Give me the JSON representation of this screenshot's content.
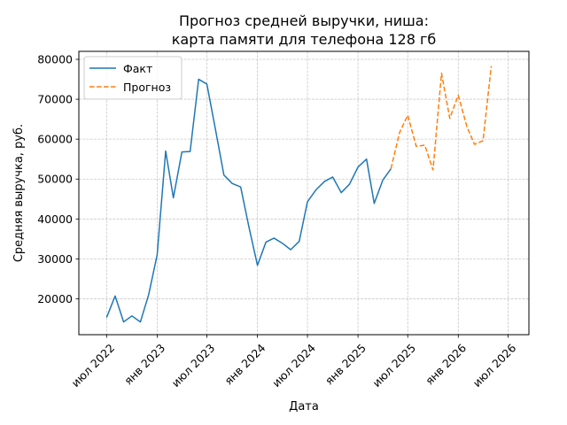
{
  "chart_data": {
    "type": "line",
    "title": [
      "Прогноз средней выручки, ниша:",
      "карта памяти для телефона 128 гб"
    ],
    "xlabel": "Дата",
    "ylabel": "Средняя выручка, руб.",
    "xlim": [
      "2022-03-22",
      "2026-09-15"
    ],
    "ylim": [
      11000,
      82000
    ],
    "grid": true,
    "legend_position": "top-left",
    "x_ticks": [
      {
        "date": "2022-07-01",
        "label": "июл 2022"
      },
      {
        "date": "2023-01-01",
        "label": "янв 2023"
      },
      {
        "date": "2023-07-01",
        "label": "июл 2023"
      },
      {
        "date": "2024-01-01",
        "label": "янв 2024"
      },
      {
        "date": "2024-07-01",
        "label": "июл 2024"
      },
      {
        "date": "2025-01-01",
        "label": "янв 2025"
      },
      {
        "date": "2025-07-01",
        "label": "июл 2025"
      },
      {
        "date": "2026-01-01",
        "label": "янв 2026"
      },
      {
        "date": "2026-07-01",
        "label": "июл 2026"
      }
    ],
    "y_ticks": [
      20000,
      30000,
      40000,
      50000,
      60000,
      70000,
      80000
    ],
    "y_tick_labels": [
      "20000",
      "30000",
      "40000",
      "50000",
      "60000",
      "70000",
      "80000"
    ],
    "series": [
      {
        "name": "Факт",
        "color": "#1f77b4",
        "style": "solid",
        "points": [
          [
            "2022-07-01",
            15300
          ],
          [
            "2022-08-01",
            20700
          ],
          [
            "2022-09-01",
            14200
          ],
          [
            "2022-10-01",
            15700
          ],
          [
            "2022-11-01",
            14200
          ],
          [
            "2022-12-01",
            21000
          ],
          [
            "2023-01-01",
            31000
          ],
          [
            "2023-02-01",
            57000
          ],
          [
            "2023-03-01",
            45300
          ],
          [
            "2023-04-01",
            56800
          ],
          [
            "2023-05-01",
            56900
          ],
          [
            "2023-06-01",
            75000
          ],
          [
            "2023-07-01",
            73800
          ],
          [
            "2023-08-01",
            62500
          ],
          [
            "2023-09-01",
            51000
          ],
          [
            "2023-10-01",
            48900
          ],
          [
            "2023-11-01",
            48000
          ],
          [
            "2023-12-01",
            38000
          ],
          [
            "2024-01-01",
            28400
          ],
          [
            "2024-02-01",
            34200
          ],
          [
            "2024-03-01",
            35200
          ],
          [
            "2024-04-01",
            33900
          ],
          [
            "2024-05-01",
            32300
          ],
          [
            "2024-06-01",
            34400
          ],
          [
            "2024-07-01",
            44300
          ],
          [
            "2024-08-01",
            47300
          ],
          [
            "2024-09-01",
            49400
          ],
          [
            "2024-10-01",
            50500
          ],
          [
            "2024-11-01",
            46600
          ],
          [
            "2024-12-01",
            48700
          ],
          [
            "2025-01-01",
            53000
          ],
          [
            "2025-02-01",
            55000
          ],
          [
            "2025-03-01",
            43900
          ],
          [
            "2025-04-01",
            49700
          ],
          [
            "2025-05-01",
            52600
          ]
        ]
      },
      {
        "name": "Прогноз",
        "color": "#ff7f0e",
        "style": "dashed",
        "points": [
          [
            "2025-05-01",
            52600
          ],
          [
            "2025-06-01",
            61600
          ],
          [
            "2025-07-01",
            66000
          ],
          [
            "2025-08-01",
            58200
          ],
          [
            "2025-09-01",
            58500
          ],
          [
            "2025-10-01",
            52300
          ],
          [
            "2025-11-01",
            76500
          ],
          [
            "2025-12-01",
            65200
          ],
          [
            "2026-01-01",
            71000
          ],
          [
            "2026-02-01",
            63200
          ],
          [
            "2026-03-01",
            58700
          ],
          [
            "2026-04-01",
            59600
          ],
          [
            "2026-05-01",
            78300
          ]
        ]
      }
    ]
  }
}
